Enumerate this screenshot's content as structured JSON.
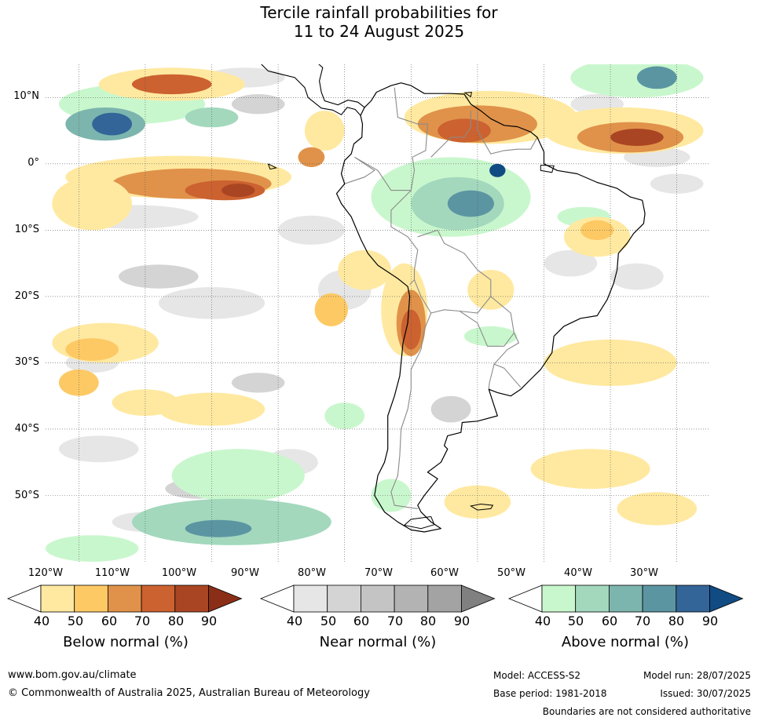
{
  "title": {
    "line1": "Tercile rainfall probabilities for",
    "line2": "11 to 24 August 2025"
  },
  "map": {
    "lat_labels": [
      "10°N",
      "0°",
      "10°S",
      "20°S",
      "30°S",
      "40°S",
      "50°S"
    ],
    "lon_labels": [
      "120°W",
      "110°W",
      "100°W",
      "90°W",
      "80°W",
      "70°W",
      "60°W",
      "50°W",
      "40°W",
      "30°W"
    ],
    "colors": {
      "below": [
        "#ffe9a0",
        "#fdc964",
        "#e0924a",
        "#cc6230",
        "#aa4523",
        "#8b2e17"
      ],
      "near": [
        "#e6e6e6",
        "#d4d4d4",
        "#c4c4c4",
        "#b3b3b3",
        "#a3a3a3",
        "#808080"
      ],
      "above": [
        "#c9f7cd",
        "#a3d8bd",
        "#7cb5ae",
        "#5c95a2",
        "#336598",
        "#114b83"
      ],
      "coast": "#000000",
      "border": "#8a8a8a",
      "grid": "#555555"
    }
  },
  "legends": [
    {
      "title": "Below normal (%)",
      "ticks": [
        "40",
        "50",
        "60",
        "70",
        "80",
        "90"
      ]
    },
    {
      "title": "Near normal (%)",
      "ticks": [
        "40",
        "50",
        "60",
        "70",
        "80",
        "90"
      ]
    },
    {
      "title": "Above normal (%)",
      "ticks": [
        "40",
        "50",
        "60",
        "70",
        "80",
        "90"
      ]
    }
  ],
  "footer": {
    "website": "www.bom.gov.au/climate",
    "copyright": "© Commonwealth of Australia 2025, Australian Bureau of Meteorology",
    "model": "Model: ACCESS-S2",
    "base_period": "Base period: 1981-2018",
    "model_run": "Model run: 28/07/2025",
    "issued": "Issued: 30/07/2025",
    "disclaimer": "Boundaries are not considered authoritative"
  }
}
